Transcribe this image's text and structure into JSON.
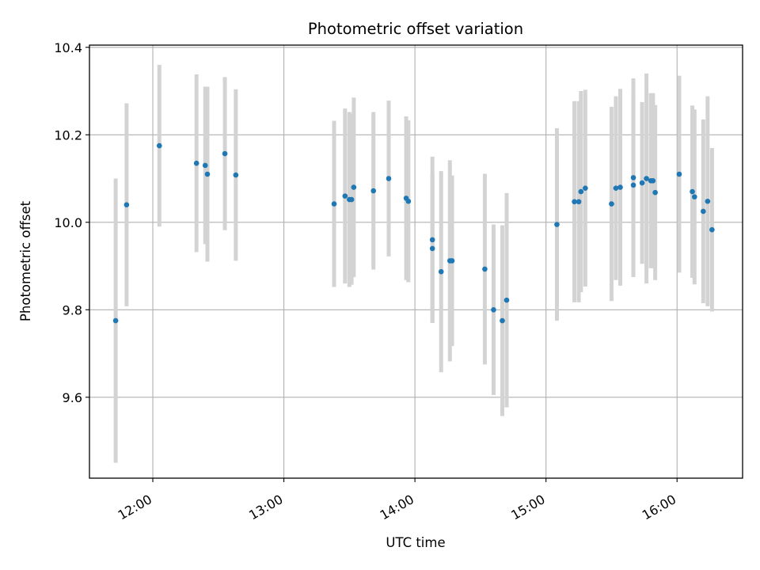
{
  "chart_data": {
    "type": "scatter",
    "title": "Photometric offset variation",
    "xlabel": "UTC time",
    "ylabel": "Photometric offset",
    "x_ticks": [
      "12:00",
      "13:00",
      "14:00",
      "15:00",
      "16:00"
    ],
    "y_ticks": [
      "9.6",
      "9.8",
      "10.0",
      "10.2",
      "10.4"
    ],
    "xlim": [
      "11:31",
      "16:30"
    ],
    "ylim": [
      9.415,
      10.405
    ],
    "grid": true,
    "colors": {
      "point": "#1f77b4",
      "errorbar": "#d3d3d3",
      "grid": "#b0b0b0"
    },
    "series": [
      {
        "x": [
          "11:43",
          "11:48",
          "12:03",
          "12:20",
          "12:24",
          "12:25",
          "12:33",
          "12:38",
          "13:23",
          "13:28",
          "13:30",
          "13:31",
          "13:32",
          "13:41",
          "13:48",
          "13:56",
          "13:57",
          "14:08",
          "14:08",
          "14:12",
          "14:16",
          "14:17",
          "14:32",
          "14:36",
          "14:40",
          "14:42",
          "15:05",
          "15:13",
          "15:15",
          "15:16",
          "15:18",
          "15:30",
          "15:32",
          "15:34",
          "15:40",
          "15:40",
          "15:44",
          "15:46",
          "15:48",
          "15:49",
          "15:50",
          "16:01",
          "16:07",
          "16:08",
          "16:12",
          "16:14",
          "16:16"
        ],
        "y": [
          9.775,
          10.04,
          10.175,
          10.135,
          10.13,
          10.11,
          10.157,
          10.108,
          10.042,
          10.06,
          10.052,
          10.052,
          10.08,
          10.072,
          10.1,
          10.055,
          10.048,
          9.96,
          9.94,
          9.887,
          9.912,
          9.912,
          9.893,
          9.8,
          9.775,
          9.822,
          9.995,
          10.047,
          10.047,
          10.07,
          10.078,
          10.042,
          10.078,
          10.08,
          10.102,
          10.085,
          10.09,
          10.1,
          10.095,
          10.095,
          10.068,
          10.11,
          10.07,
          10.058,
          10.025,
          10.048,
          9.983
        ],
        "err": [
          0.325,
          0.232,
          0.185,
          0.203,
          0.18,
          0.2,
          0.175,
          0.196,
          0.19,
          0.2,
          0.2,
          0.195,
          0.205,
          0.18,
          0.178,
          0.187,
          0.185,
          0.19,
          0.17,
          0.23,
          0.23,
          0.195,
          0.218,
          0.195,
          0.218,
          0.245,
          0.22,
          0.23,
          0.23,
          0.23,
          0.225,
          0.222,
          0.21,
          0.225,
          0.227,
          0.21,
          0.185,
          0.24,
          0.2,
          0.2,
          0.2,
          0.225,
          0.197,
          0.2,
          0.21,
          0.24,
          0.187
        ]
      }
    ]
  }
}
